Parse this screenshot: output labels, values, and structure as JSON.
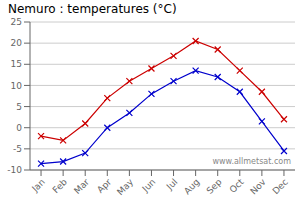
{
  "chart_data": {
    "type": "line",
    "title": "Nemuro : temperatures (°C)",
    "categories": [
      "Jan",
      "Feb",
      "Mar",
      "Apr",
      "May",
      "Jun",
      "Jul",
      "Aug",
      "Sep",
      "Oct",
      "Nov",
      "Dec"
    ],
    "series": [
      {
        "color": "#cc0000",
        "marker": "x",
        "values": [
          -2.0,
          -3.0,
          1.0,
          7.0,
          11.0,
          14.0,
          17.0,
          20.5,
          18.5,
          13.5,
          8.5,
          2.0
        ]
      },
      {
        "color": "#0000cc",
        "marker": "x",
        "values": [
          -8.5,
          -8.0,
          -6.0,
          0.0,
          3.5,
          8.0,
          11.0,
          13.5,
          12.0,
          8.5,
          1.5,
          -5.5
        ]
      }
    ],
    "ylim": [
      -10,
      25
    ],
    "yticks": [
      -10,
      -5,
      0,
      5,
      10,
      15,
      20,
      25
    ],
    "grid": "y",
    "annotations": [
      "www.allmetsat.com"
    ]
  }
}
